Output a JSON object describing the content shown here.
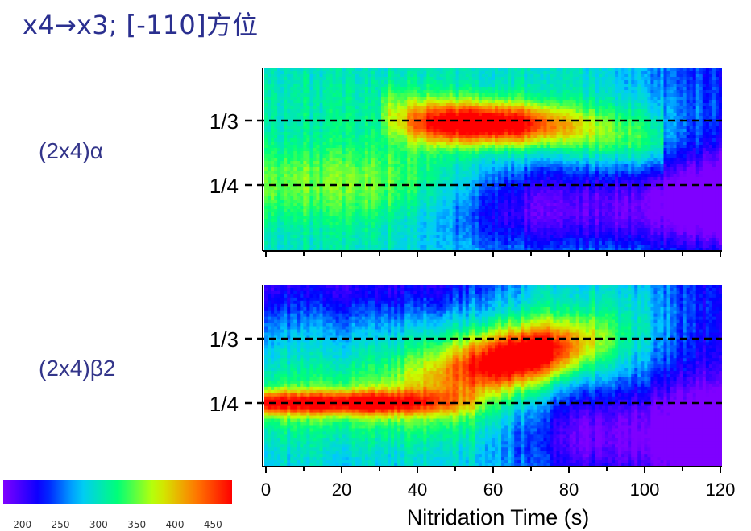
{
  "title": "x4→x3; [-110]方位",
  "panel_labels": [
    "(2x4)α",
    "(2x4)β2"
  ],
  "colors": {
    "title": "#2a2f8f",
    "label": "#33358a",
    "colormap": [
      "#7f00ff",
      "#0000ff",
      "#00c8ff",
      "#00ff78",
      "#c8ff00",
      "#ff8000",
      "#ff0000"
    ]
  },
  "chart_data": [
    {
      "type": "heatmap",
      "panel": "(2x4)α",
      "x_range": [
        0,
        120
      ],
      "x_ticks": [
        0,
        20,
        40,
        60,
        80,
        100,
        120
      ],
      "row_labels": [
        "1/3",
        "1/4"
      ],
      "colorbar_range": [
        175,
        475
      ],
      "features": [
        {
          "description": "intensity maximum along 1/3 line",
          "x_center": 57,
          "value": 460
        },
        {
          "description": "intensity along 1/4 line at early time",
          "x_range": [
            0,
            40
          ],
          "value": 340
        },
        {
          "description": "intensity along 1/4 line at late time",
          "x_range": [
            80,
            120
          ],
          "value": 215
        }
      ]
    },
    {
      "type": "heatmap",
      "panel": "(2x4)β2",
      "x_range": [
        0,
        120
      ],
      "x_ticks": [
        0,
        20,
        40,
        60,
        80,
        100,
        120
      ],
      "row_labels": [
        "1/3",
        "1/4"
      ],
      "colorbar_range": [
        175,
        475
      ],
      "features": [
        {
          "description": "intensity maximum along 1/4 line",
          "x_range": [
            0,
            25
          ],
          "value": 440
        },
        {
          "description": "intensity maximum along 1/3 line",
          "x_center": 68,
          "value": 450
        },
        {
          "description": "intensity along 1/4 line at late time",
          "x_range": [
            80,
            120
          ],
          "value": 215
        }
      ]
    }
  ],
  "x_tick_labels": [
    "0",
    "20",
    "40",
    "60",
    "80",
    "100",
    "120"
  ],
  "xlabel": "Nitridation Time (s)",
  "colorbar": {
    "ticks": [
      200,
      250,
      300,
      350,
      400,
      450
    ],
    "tick_labels": [
      "200",
      "250",
      "300",
      "350",
      "400",
      "450"
    ]
  }
}
